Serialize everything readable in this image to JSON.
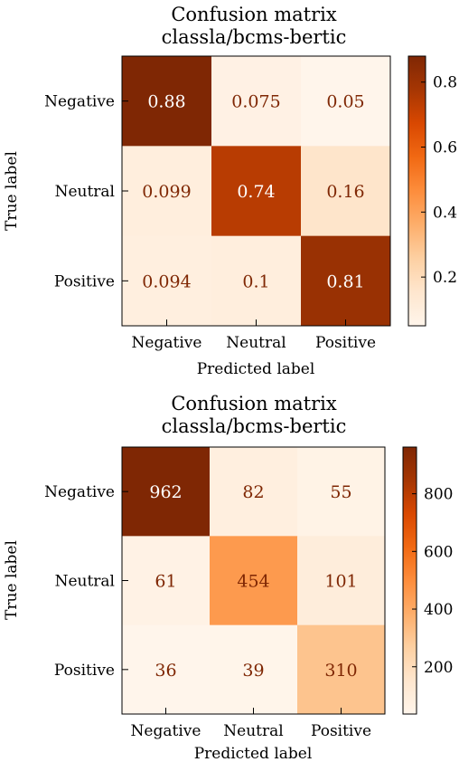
{
  "chart_data": [
    {
      "type": "heatmap",
      "title": "Confusion matrix\nclassla/bcms-bertic",
      "xlabel": "Predicted label",
      "ylabel": "True label",
      "x_categories": [
        "Negative",
        "Neutral",
        "Positive"
      ],
      "y_categories": [
        "Negative",
        "Neutral",
        "Positive"
      ],
      "values": [
        [
          0.88,
          0.075,
          0.05
        ],
        [
          0.099,
          0.74,
          0.16
        ],
        [
          0.094,
          0.1,
          0.81
        ]
      ],
      "cell_labels": [
        [
          "0.88",
          "0.075",
          "0.05"
        ],
        [
          "0.099",
          "0.74",
          "0.16"
        ],
        [
          "0.094",
          "0.1",
          "0.81"
        ]
      ],
      "colorbar": {
        "min": 0.05,
        "max": 0.88,
        "ticks": [
          0.2,
          0.4,
          0.6,
          0.8
        ],
        "tick_labels": [
          "0.2",
          "0.4",
          "0.6",
          "0.8"
        ]
      },
      "colormap": "Oranges",
      "grid": false
    },
    {
      "type": "heatmap",
      "title": "Confusion matrix\nclassla/bcms-bertic",
      "xlabel": "Predicted label",
      "ylabel": "True label",
      "x_categories": [
        "Negative",
        "Neutral",
        "Positive"
      ],
      "y_categories": [
        "Negative",
        "Neutral",
        "Positive"
      ],
      "values": [
        [
          962,
          82,
          55
        ],
        [
          61,
          454,
          101
        ],
        [
          36,
          39,
          310
        ]
      ],
      "cell_labels": [
        [
          "962",
          "82",
          "55"
        ],
        [
          "61",
          "454",
          "101"
        ],
        [
          "36",
          "39",
          "310"
        ]
      ],
      "colorbar": {
        "min": 36,
        "max": 962,
        "ticks": [
          200,
          400,
          600,
          800
        ],
        "tick_labels": [
          "200",
          "400",
          "600",
          "800"
        ]
      },
      "colormap": "Oranges",
      "grid": false
    }
  ],
  "colors": {
    "oranges_ramp": [
      "#fff5eb",
      "#fee6ce",
      "#fdd0a2",
      "#fdae6b",
      "#fd8d3c",
      "#f16913",
      "#d94801",
      "#a63603",
      "#7f2704"
    ],
    "low_text": "#7f2704",
    "high_text": "#ffffff"
  }
}
